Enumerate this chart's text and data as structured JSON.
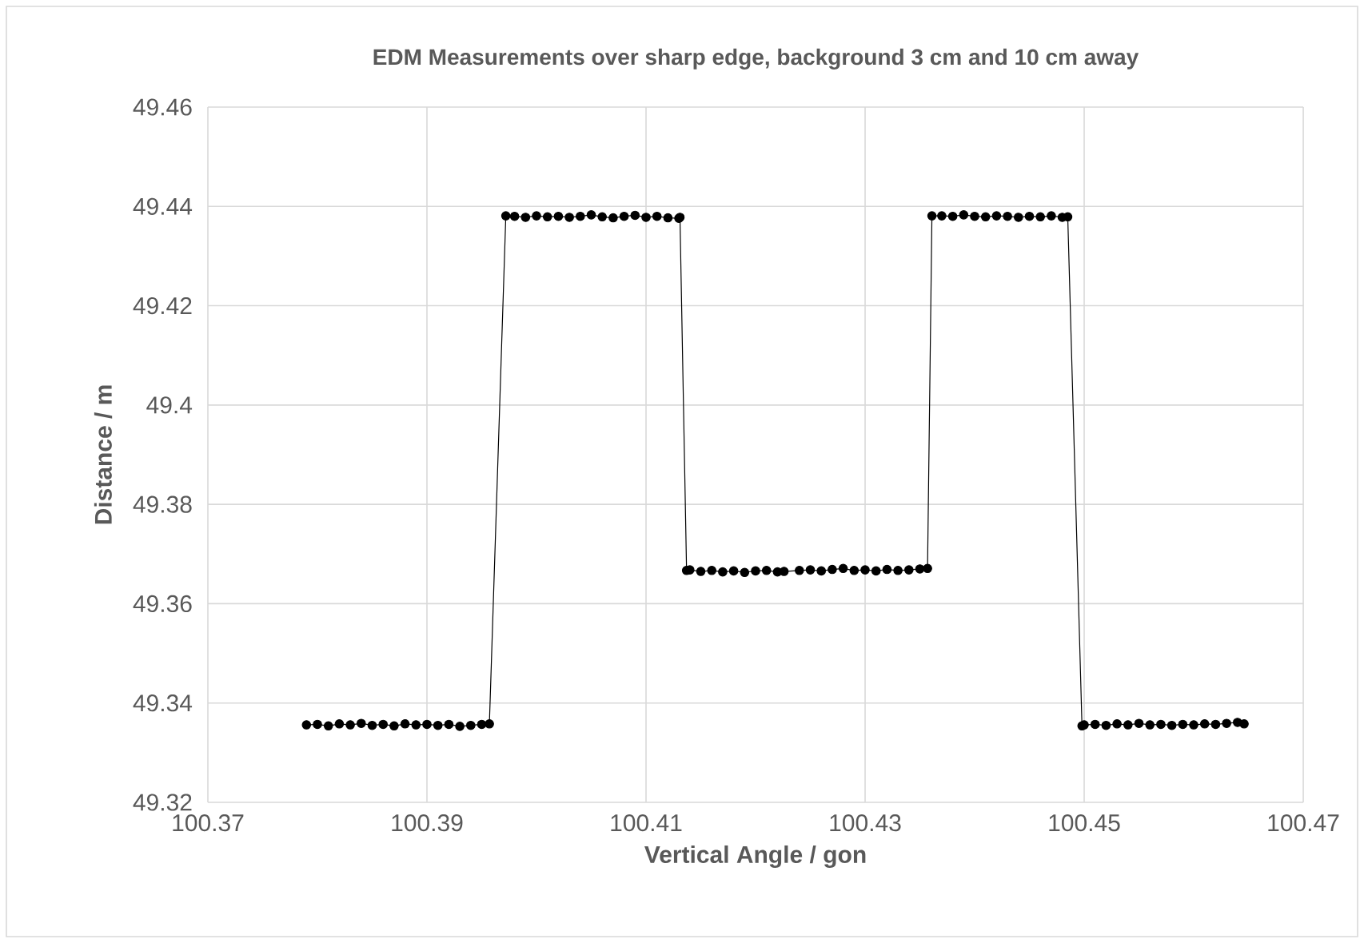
{
  "chart_data": {
    "type": "line",
    "title": "EDM Measurements over sharp edge, background 3 cm and 10 cm away",
    "xlabel": "Vertical Angle / gon",
    "ylabel": "Distance / m",
    "x": [
      100.379,
      100.38,
      100.381,
      100.382,
      100.383,
      100.384,
      100.385,
      100.386,
      100.387,
      100.388,
      100.389,
      100.39,
      100.391,
      100.392,
      100.393,
      100.394,
      100.395,
      100.3957,
      100.3972,
      100.398,
      100.399,
      100.4,
      100.401,
      100.402,
      100.403,
      100.404,
      100.405,
      100.406,
      100.407,
      100.408,
      100.409,
      100.41,
      100.411,
      100.412,
      100.413,
      100.4131,
      100.4137,
      100.414,
      100.415,
      100.416,
      100.417,
      100.418,
      100.419,
      100.42,
      100.421,
      100.422,
      100.4226,
      100.424,
      100.425,
      100.426,
      100.427,
      100.428,
      100.429,
      100.43,
      100.431,
      100.432,
      100.433,
      100.434,
      100.435,
      100.4357,
      100.4361,
      100.437,
      100.438,
      100.439,
      100.44,
      100.441,
      100.442,
      100.443,
      100.444,
      100.445,
      100.446,
      100.447,
      100.448,
      100.4485,
      100.4498,
      100.45,
      100.451,
      100.452,
      100.453,
      100.454,
      100.455,
      100.456,
      100.457,
      100.458,
      100.459,
      100.46,
      100.461,
      100.462,
      100.463,
      100.464,
      100.4646
    ],
    "series": [
      {
        "color": "#000000",
        "values": [
          49.3356,
          49.3357,
          49.3354,
          49.3358,
          49.3356,
          49.3359,
          49.3355,
          49.3357,
          49.3354,
          49.3358,
          49.3356,
          49.3357,
          49.3355,
          49.3357,
          49.3353,
          49.3355,
          49.3357,
          49.3358,
          49.4381,
          49.438,
          49.4378,
          49.4381,
          49.4379,
          49.438,
          49.4378,
          49.438,
          49.4383,
          49.4379,
          49.4377,
          49.438,
          49.4382,
          49.4378,
          49.438,
          49.4377,
          49.4376,
          49.4378,
          49.3667,
          49.3668,
          49.3665,
          49.3667,
          49.3664,
          49.3666,
          49.3663,
          49.3666,
          49.3667,
          49.3664,
          49.3665,
          49.3667,
          49.3668,
          49.3666,
          49.3669,
          49.3671,
          49.3667,
          49.3668,
          49.3666,
          49.3669,
          49.3667,
          49.3668,
          49.367,
          49.3671,
          49.4381,
          49.4381,
          49.438,
          49.4383,
          49.438,
          49.4379,
          49.4381,
          49.438,
          49.4378,
          49.438,
          49.4379,
          49.4381,
          49.4378,
          49.4379,
          49.3354,
          49.3356,
          49.3357,
          49.3355,
          49.3358,
          49.3356,
          49.3359,
          49.3356,
          49.3357,
          49.3355,
          49.3357,
          49.3356,
          49.3358,
          49.3357,
          49.3359,
          49.3361,
          49.3358
        ]
      }
    ],
    "xlim": [
      100.37,
      100.47
    ],
    "xticks": [
      100.37,
      100.39,
      100.41,
      100.43,
      100.45,
      100.47
    ],
    "ylim": [
      49.32,
      49.46
    ],
    "yticks": [
      49.32,
      49.34,
      49.36,
      49.38,
      49.4,
      49.42,
      49.44,
      49.46
    ],
    "grid": true,
    "marker": "circle",
    "line_style": "solid"
  }
}
